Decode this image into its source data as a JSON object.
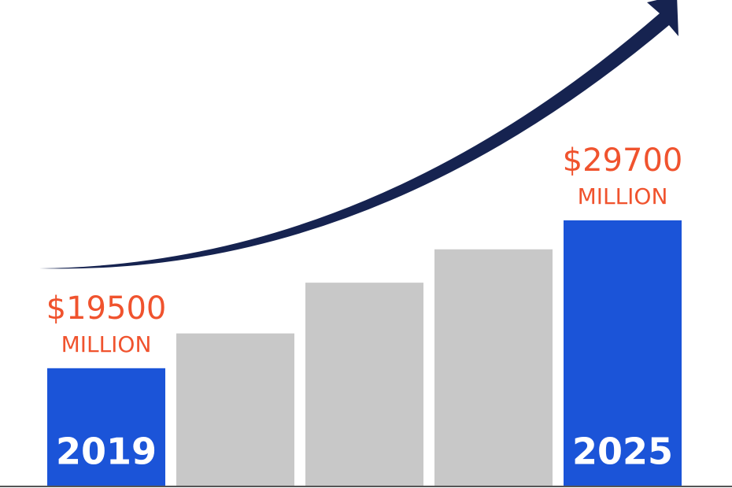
{
  "chart_data": {
    "type": "bar",
    "categories": [
      "2019",
      null,
      null,
      null,
      "2025"
    ],
    "values": [
      19500,
      21900,
      25400,
      27700,
      29700
    ],
    "value_labels": [
      "$19500",
      null,
      null,
      null,
      "$29700"
    ],
    "value_unit": "MILLION",
    "colors": [
      "#1b54d8",
      "#c8c8c8",
      "#c8c8c8",
      "#c8c8c8",
      "#1b54d8"
    ],
    "label_color": "#f0532e",
    "ylim": [
      11400,
      44900
    ]
  }
}
